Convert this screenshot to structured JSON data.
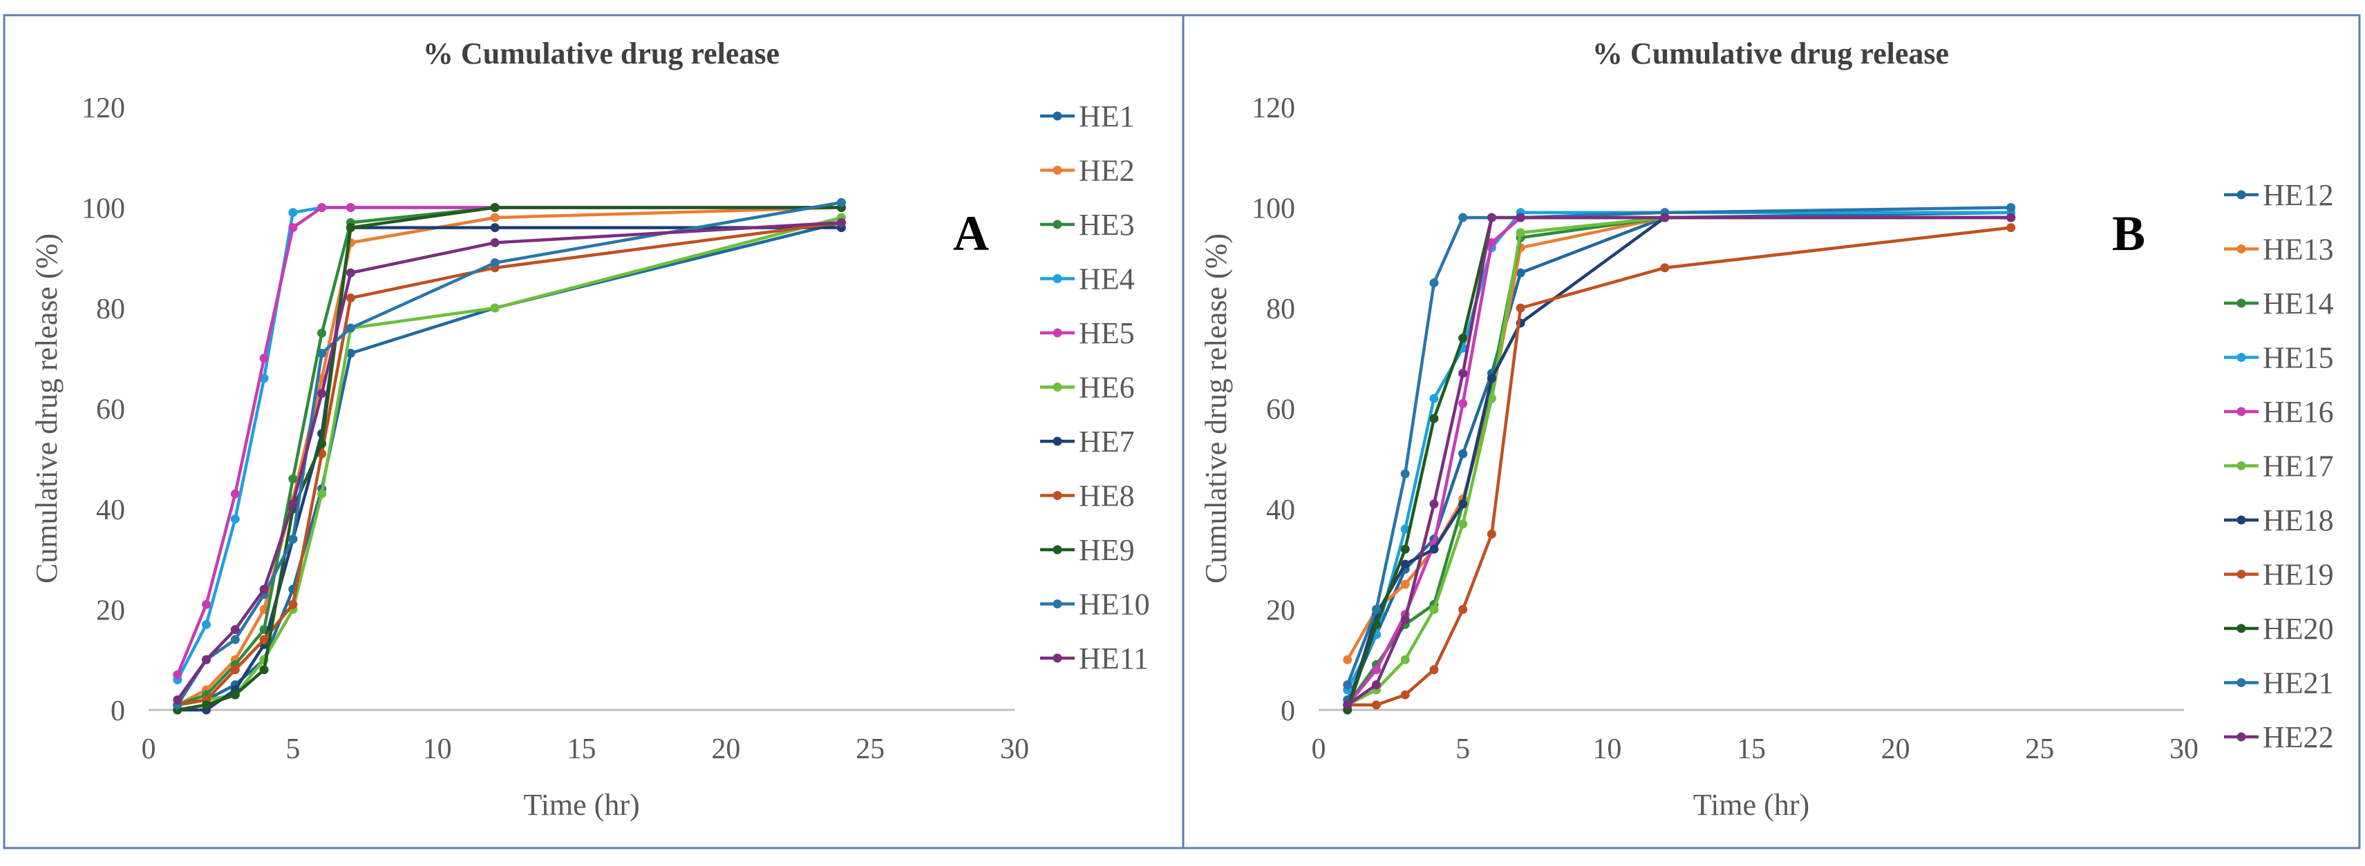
{
  "chart_data": [
    {
      "panel": "A",
      "type": "line",
      "title": "% Cumulative drug release",
      "xlabel": "Time (hr)",
      "ylabel": "Cumulative drug release (%)",
      "xlim": [
        0,
        30
      ],
      "ylim": [
        0,
        120
      ],
      "xticks": [
        0,
        5,
        10,
        15,
        20,
        25,
        30
      ],
      "yticks": [
        0,
        20,
        40,
        60,
        80,
        100,
        120
      ],
      "grid": false,
      "legend": "right",
      "series": [
        {
          "name": "HE1",
          "color": "#1F6A9E",
          "x": [
            1,
            2,
            3,
            4,
            5,
            6,
            7,
            12,
            24
          ],
          "y": [
            1,
            2,
            5,
            10,
            24,
            44,
            71,
            80,
            97
          ]
        },
        {
          "name": "HE2",
          "color": "#ED7D31",
          "x": [
            1,
            2,
            3,
            4,
            5,
            6,
            7,
            12,
            24
          ],
          "y": [
            1,
            4,
            10,
            20,
            42,
            66,
            93,
            98,
            100
          ]
        },
        {
          "name": "HE3",
          "color": "#2E8B3A",
          "x": [
            1,
            2,
            3,
            4,
            5,
            6,
            7,
            12,
            24
          ],
          "y": [
            1,
            3,
            9,
            16,
            46,
            75,
            97,
            100,
            100
          ]
        },
        {
          "name": "HE4",
          "color": "#1FA0E0",
          "x": [
            1,
            2,
            3,
            4,
            5,
            6,
            7,
            12,
            24
          ],
          "y": [
            6,
            17,
            38,
            66,
            99,
            100,
            100,
            100,
            100
          ]
        },
        {
          "name": "HE5",
          "color": "#C83CB4",
          "x": [
            1,
            2,
            3,
            4,
            5,
            6,
            7,
            12,
            24
          ],
          "y": [
            7,
            21,
            43,
            70,
            96,
            100,
            100,
            100,
            100
          ]
        },
        {
          "name": "HE6",
          "color": "#6CBF3B",
          "x": [
            1,
            2,
            3,
            4,
            5,
            6,
            7,
            12,
            24
          ],
          "y": [
            1,
            2,
            3,
            10,
            20,
            43,
            76,
            80,
            98
          ]
        },
        {
          "name": "HE7",
          "color": "#1F3F73",
          "x": [
            1,
            2,
            3,
            4,
            5,
            6,
            7,
            12,
            24
          ],
          "y": [
            0,
            0,
            4,
            13,
            34,
            55,
            96,
            96,
            96
          ]
        },
        {
          "name": "HE8",
          "color": "#C0501F",
          "x": [
            1,
            2,
            3,
            4,
            5,
            6,
            7,
            12,
            24
          ],
          "y": [
            1,
            2,
            8,
            14,
            21,
            51,
            82,
            88,
            97
          ]
        },
        {
          "name": "HE9",
          "color": "#1E5C1E",
          "x": [
            1,
            2,
            3,
            4,
            5,
            6,
            7,
            12,
            24
          ],
          "y": [
            0,
            1,
            3,
            8,
            40,
            53,
            96,
            100,
            100
          ]
        },
        {
          "name": "HE10",
          "color": "#2776A8",
          "x": [
            1,
            2,
            3,
            4,
            5,
            6,
            7,
            12,
            24
          ],
          "y": [
            1,
            10,
            14,
            23,
            34,
            71,
            76,
            89,
            101
          ]
        },
        {
          "name": "HE11",
          "color": "#7B2E7E",
          "x": [
            1,
            2,
            3,
            4,
            5,
            6,
            7,
            12,
            24
          ],
          "y": [
            2,
            10,
            16,
            24,
            41,
            63,
            87,
            93,
            97
          ]
        }
      ],
      "annotation": "A"
    },
    {
      "panel": "B",
      "type": "line",
      "title": "% Cumulative drug release",
      "xlabel": "Time (hr)",
      "ylabel": "Cumulative drug release (%)",
      "xlim": [
        0,
        30
      ],
      "ylim": [
        0,
        120
      ],
      "xticks": [
        0,
        5,
        10,
        15,
        20,
        25,
        30
      ],
      "yticks": [
        0,
        20,
        40,
        60,
        80,
        100,
        120
      ],
      "grid": false,
      "legend": "right",
      "series": [
        {
          "name": "HE12",
          "color": "#1F6A9E",
          "x": [
            1,
            2,
            3,
            4,
            5,
            6,
            7,
            12,
            24
          ],
          "y": [
            2,
            15,
            28,
            34,
            51,
            67,
            87,
            98,
            99
          ]
        },
        {
          "name": "HE13",
          "color": "#ED7D31",
          "x": [
            1,
            2,
            3,
            4,
            5,
            6,
            7,
            12,
            24
          ],
          "y": [
            10,
            20,
            25,
            32,
            42,
            62,
            92,
            98,
            98
          ]
        },
        {
          "name": "HE14",
          "color": "#2E8B3A",
          "x": [
            1,
            2,
            3,
            4,
            5,
            6,
            7,
            12,
            24
          ],
          "y": [
            1,
            9,
            17,
            21,
            41,
            65,
            94,
            98,
            98
          ]
        },
        {
          "name": "HE15",
          "color": "#1FA0E0",
          "x": [
            1,
            2,
            3,
            4,
            5,
            6,
            7,
            12,
            24
          ],
          "y": [
            4,
            15,
            36,
            62,
            72,
            92,
            99,
            99,
            99
          ]
        },
        {
          "name": "HE16",
          "color": "#C83CB4",
          "x": [
            1,
            2,
            3,
            4,
            5,
            6,
            7,
            12,
            24
          ],
          "y": [
            1,
            8,
            19,
            33,
            61,
            93,
            98,
            98,
            98
          ]
        },
        {
          "name": "HE17",
          "color": "#6CBF3B",
          "x": [
            1,
            2,
            3,
            4,
            5,
            6,
            7,
            12,
            24
          ],
          "y": [
            1,
            4,
            10,
            20,
            37,
            62,
            95,
            98,
            98
          ]
        },
        {
          "name": "HE18",
          "color": "#1F3F73",
          "x": [
            1,
            2,
            3,
            4,
            5,
            6,
            7,
            12,
            24
          ],
          "y": [
            0,
            19,
            29,
            32,
            41,
            66,
            77,
            98,
            98
          ]
        },
        {
          "name": "HE19",
          "color": "#C0501F",
          "x": [
            1,
            2,
            3,
            4,
            5,
            6,
            7,
            12,
            24
          ],
          "y": [
            1,
            1,
            3,
            8,
            20,
            35,
            80,
            88,
            96
          ]
        },
        {
          "name": "HE20",
          "color": "#1E5C1E",
          "x": [
            1,
            2,
            3,
            4,
            5,
            6,
            7,
            12,
            24
          ],
          "y": [
            0,
            17,
            32,
            58,
            74,
            98,
            98,
            98,
            98
          ]
        },
        {
          "name": "HE21",
          "color": "#2776A8",
          "x": [
            1,
            2,
            3,
            4,
            5,
            6,
            7,
            12,
            24
          ],
          "y": [
            5,
            20,
            47,
            85,
            98,
            98,
            98,
            99,
            100
          ]
        },
        {
          "name": "HE22",
          "color": "#7B2E7E",
          "x": [
            1,
            2,
            3,
            4,
            5,
            6,
            7,
            12,
            24
          ],
          "y": [
            1,
            5,
            18,
            41,
            67,
            98,
            98,
            98,
            98
          ]
        }
      ],
      "annotation": "B"
    }
  ]
}
